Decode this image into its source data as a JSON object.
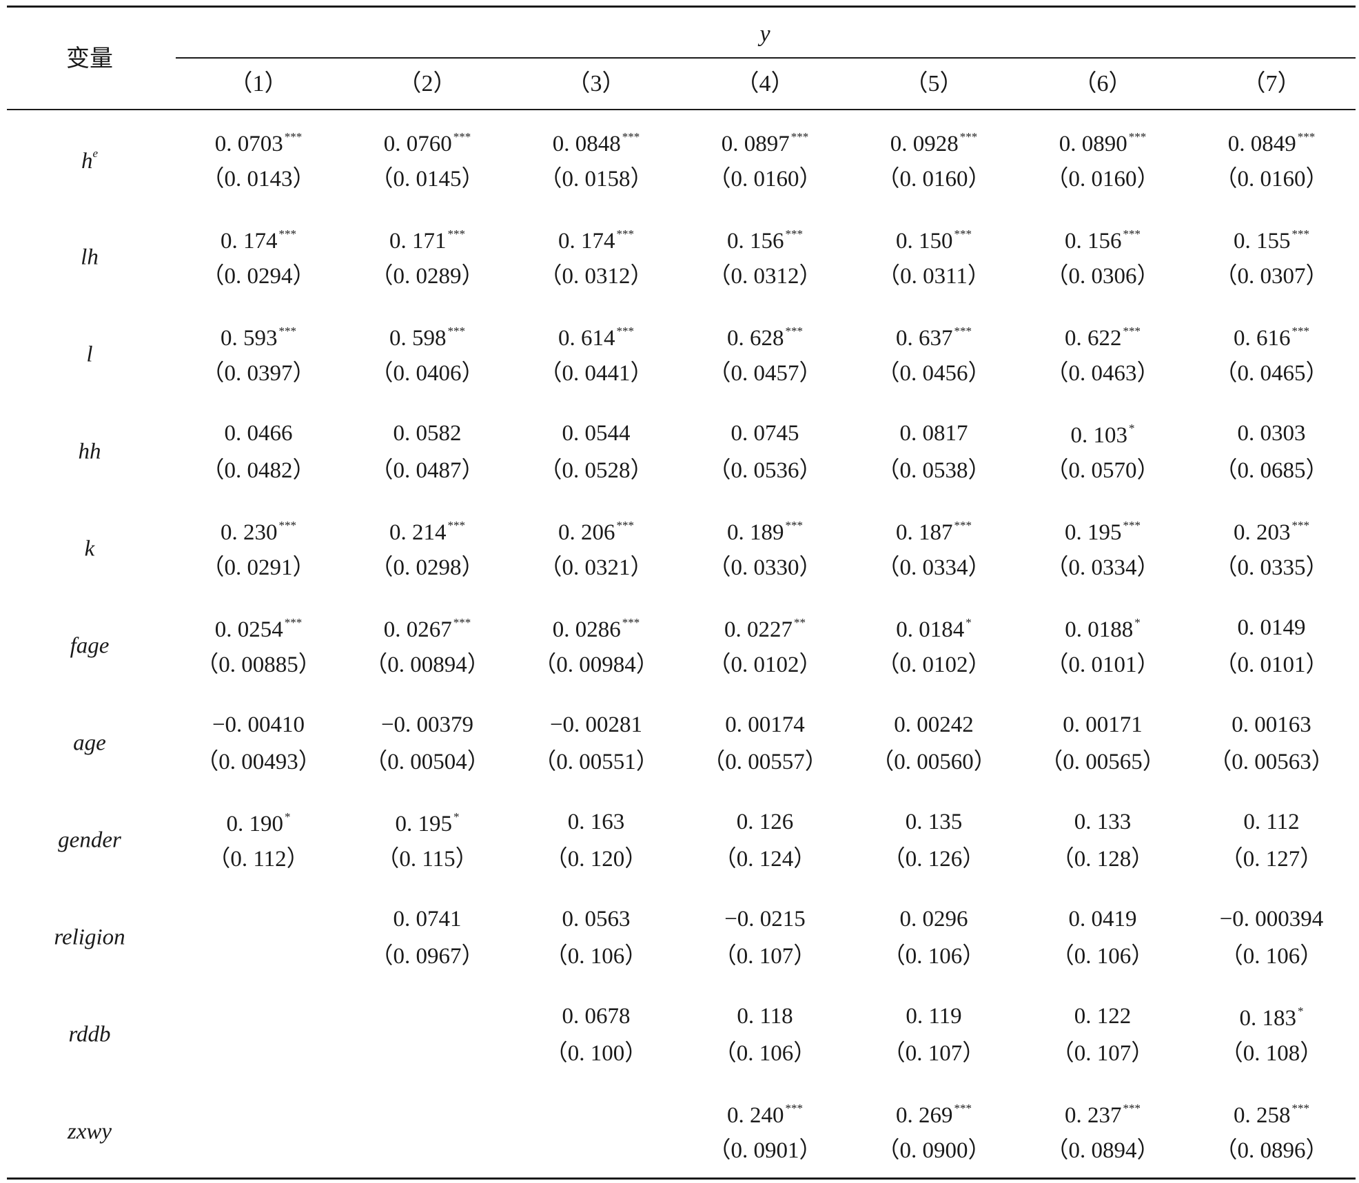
{
  "header": {
    "variable_label": "变量",
    "dependent_label": "y",
    "columns": [
      "（1）",
      "（2）",
      "（3）",
      "（4）",
      "（5）",
      "（6）",
      "（7）"
    ]
  },
  "rows": [
    {
      "label": "h",
      "label_sup": "e",
      "cells": [
        {
          "coef": "0. 0703",
          "stars": "***",
          "se": "（0. 0143）"
        },
        {
          "coef": "0. 0760",
          "stars": "***",
          "se": "（0. 0145）"
        },
        {
          "coef": "0. 0848",
          "stars": "***",
          "se": "（0. 0158）"
        },
        {
          "coef": "0. 0897",
          "stars": "***",
          "se": "（0. 0160）"
        },
        {
          "coef": "0. 0928",
          "stars": "***",
          "se": "（0. 0160）"
        },
        {
          "coef": "0. 0890",
          "stars": "***",
          "se": "（0. 0160）"
        },
        {
          "coef": "0. 0849",
          "stars": "***",
          "se": "（0. 0160）"
        }
      ]
    },
    {
      "label": "lh",
      "label_sup": "",
      "cells": [
        {
          "coef": "0. 174",
          "stars": "***",
          "se": "（0. 0294）"
        },
        {
          "coef": "0. 171",
          "stars": "***",
          "se": "（0. 0289）"
        },
        {
          "coef": "0. 174",
          "stars": "***",
          "se": "（0. 0312）"
        },
        {
          "coef": "0. 156",
          "stars": "***",
          "se": "（0. 0312）"
        },
        {
          "coef": "0. 150",
          "stars": "***",
          "se": "（0. 0311）"
        },
        {
          "coef": "0. 156",
          "stars": "***",
          "se": "（0. 0306）"
        },
        {
          "coef": "0. 155",
          "stars": "***",
          "se": "（0. 0307）"
        }
      ]
    },
    {
      "label": "l",
      "label_sup": "",
      "cells": [
        {
          "coef": "0. 593",
          "stars": "***",
          "se": "（0. 0397）"
        },
        {
          "coef": "0. 598",
          "stars": "***",
          "se": "（0. 0406）"
        },
        {
          "coef": "0. 614",
          "stars": "***",
          "se": "（0. 0441）"
        },
        {
          "coef": "0. 628",
          "stars": "***",
          "se": "（0. 0457）"
        },
        {
          "coef": "0. 637",
          "stars": "***",
          "se": "（0. 0456）"
        },
        {
          "coef": "0. 622",
          "stars": "***",
          "se": "（0. 0463）"
        },
        {
          "coef": "0. 616",
          "stars": "***",
          "se": "（0. 0465）"
        }
      ]
    },
    {
      "label": "hh",
      "label_sup": "",
      "cells": [
        {
          "coef": "0. 0466",
          "stars": "",
          "se": "（0. 0482）"
        },
        {
          "coef": "0. 0582",
          "stars": "",
          "se": "（0. 0487）"
        },
        {
          "coef": "0. 0544",
          "stars": "",
          "se": "（0. 0528）"
        },
        {
          "coef": "0. 0745",
          "stars": "",
          "se": "（0. 0536）"
        },
        {
          "coef": "0. 0817",
          "stars": "",
          "se": "（0. 0538）"
        },
        {
          "coef": "0. 103",
          "stars": "*",
          "se": "（0. 0570）"
        },
        {
          "coef": "0. 0303",
          "stars": "",
          "se": "（0. 0685）"
        }
      ]
    },
    {
      "label": "k",
      "label_sup": "",
      "cells": [
        {
          "coef": "0. 230",
          "stars": "***",
          "se": "（0. 0291）"
        },
        {
          "coef": "0. 214",
          "stars": "***",
          "se": "（0. 0298）"
        },
        {
          "coef": "0. 206",
          "stars": "***",
          "se": "（0. 0321）"
        },
        {
          "coef": "0. 189",
          "stars": "***",
          "se": "（0. 0330）"
        },
        {
          "coef": "0. 187",
          "stars": "***",
          "se": "（0. 0334）"
        },
        {
          "coef": "0. 195",
          "stars": "***",
          "se": "（0. 0334）"
        },
        {
          "coef": "0. 203",
          "stars": "***",
          "se": "（0. 0335）"
        }
      ]
    },
    {
      "label": "fage",
      "label_sup": "",
      "cells": [
        {
          "coef": "0. 0254",
          "stars": "***",
          "se": "（0. 00885）"
        },
        {
          "coef": "0. 0267",
          "stars": "***",
          "se": "（0. 00894）"
        },
        {
          "coef": "0. 0286",
          "stars": "***",
          "se": "（0. 00984）"
        },
        {
          "coef": "0. 0227",
          "stars": "**",
          "se": "（0. 0102）"
        },
        {
          "coef": "0. 0184",
          "stars": "*",
          "se": "（0. 0102）"
        },
        {
          "coef": "0. 0188",
          "stars": "*",
          "se": "（0. 0101）"
        },
        {
          "coef": "0. 0149",
          "stars": "",
          "se": "（0. 0101）"
        }
      ]
    },
    {
      "label": "age",
      "label_sup": "",
      "cells": [
        {
          "coef": "−0. 00410",
          "stars": "",
          "se": "（0. 00493）"
        },
        {
          "coef": "−0. 00379",
          "stars": "",
          "se": "（0. 00504）"
        },
        {
          "coef": "−0. 00281",
          "stars": "",
          "se": "（0. 00551）"
        },
        {
          "coef": "0. 00174",
          "stars": "",
          "se": "（0. 00557）"
        },
        {
          "coef": "0. 00242",
          "stars": "",
          "se": "（0. 00560）"
        },
        {
          "coef": "0. 00171",
          "stars": "",
          "se": "（0. 00565）"
        },
        {
          "coef": "0. 00163",
          "stars": "",
          "se": "（0. 00563）"
        }
      ]
    },
    {
      "label": "gender",
      "label_sup": "",
      "cells": [
        {
          "coef": "0. 190",
          "stars": "*",
          "se": "（0. 112）"
        },
        {
          "coef": "0. 195",
          "stars": "*",
          "se": "（0. 115）"
        },
        {
          "coef": "0. 163",
          "stars": "",
          "se": "（0. 120）"
        },
        {
          "coef": "0. 126",
          "stars": "",
          "se": "（0. 124）"
        },
        {
          "coef": "0. 135",
          "stars": "",
          "se": "（0. 126）"
        },
        {
          "coef": "0. 133",
          "stars": "",
          "se": "（0. 128）"
        },
        {
          "coef": "0. 112",
          "stars": "",
          "se": "（0. 127）"
        }
      ]
    },
    {
      "label": "religion",
      "label_sup": "",
      "cells": [
        null,
        {
          "coef": "0. 0741",
          "stars": "",
          "se": "（0. 0967）"
        },
        {
          "coef": "0. 0563",
          "stars": "",
          "se": "（0. 106）"
        },
        {
          "coef": "−0. 0215",
          "stars": "",
          "se": "（0. 107）"
        },
        {
          "coef": "0. 0296",
          "stars": "",
          "se": "（0. 106）"
        },
        {
          "coef": "0. 0419",
          "stars": "",
          "se": "（0. 106）"
        },
        {
          "coef": "−0. 000394",
          "stars": "",
          "se": "（0. 106）"
        }
      ]
    },
    {
      "label": "rddb",
      "label_sup": "",
      "cells": [
        null,
        null,
        {
          "coef": "0. 0678",
          "stars": "",
          "se": "（0. 100）"
        },
        {
          "coef": "0. 118",
          "stars": "",
          "se": "（0. 106）"
        },
        {
          "coef": "0. 119",
          "stars": "",
          "se": "（0. 107）"
        },
        {
          "coef": "0. 122",
          "stars": "",
          "se": "（0. 107）"
        },
        {
          "coef": "0. 183",
          "stars": "*",
          "se": "（0. 108）"
        }
      ]
    },
    {
      "label": "zxwy",
      "label_sup": "",
      "cells": [
        null,
        null,
        null,
        {
          "coef": "0. 240",
          "stars": "***",
          "se": "（0. 0901）"
        },
        {
          "coef": "0. 269",
          "stars": "***",
          "se": "（0. 0900）"
        },
        {
          "coef": "0. 237",
          "stars": "***",
          "se": "（0. 0894）"
        },
        {
          "coef": "0. 258",
          "stars": "***",
          "se": "（0. 0896）"
        }
      ]
    }
  ]
}
